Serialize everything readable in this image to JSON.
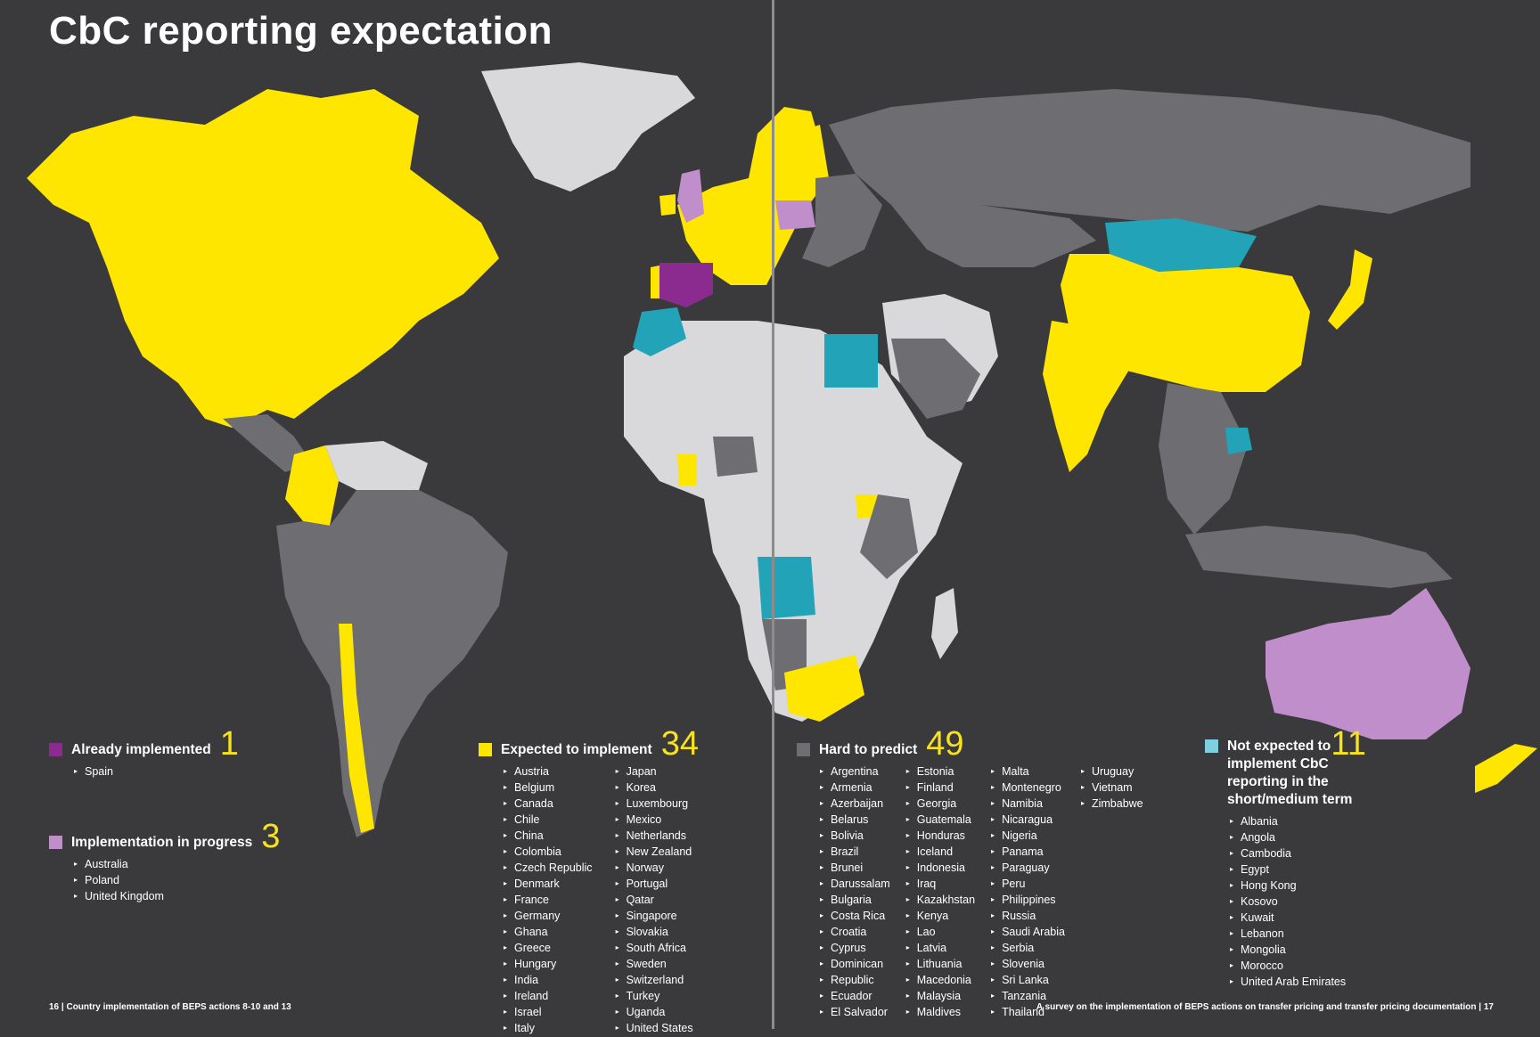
{
  "title": "CbC reporting expectation",
  "colors": {
    "background": "#3a3a3c",
    "already_implemented": "#8b2a8f",
    "implementation_in_progress": "#c08fcb",
    "expected_to_implement": "#ffe600",
    "hard_to_predict": "#6e6e72",
    "not_expected": "#22a3b8",
    "no_data": "#d9d9db"
  },
  "legend": {
    "already_implemented": {
      "label": "Already implemented",
      "count": "1",
      "countries": [
        "Spain"
      ]
    },
    "implementation_in_progress": {
      "label": "Implementation in progress",
      "count": "3",
      "countries": [
        "Australia",
        "Poland",
        "United Kingdom"
      ]
    },
    "expected_to_implement": {
      "label": "Expected to implement",
      "count": "34",
      "col1": [
        "Austria",
        "Belgium",
        "Canada",
        "Chile",
        "China",
        "Colombia",
        "Czech Republic",
        "Denmark",
        "France",
        "Germany",
        "Ghana",
        "Greece",
        "Hungary",
        "India",
        "Ireland",
        "Israel",
        "Italy"
      ],
      "col2": [
        "Japan",
        "Korea",
        "Luxembourg",
        "Mexico",
        "Netherlands",
        "New Zealand",
        "Norway",
        "Portugal",
        "Qatar",
        "Singapore",
        "Slovakia",
        "South Africa",
        "Sweden",
        "Switzerland",
        "Turkey",
        "Uganda",
        "United States"
      ]
    },
    "hard_to_predict": {
      "label": "Hard to predict",
      "count": "49",
      "col1": [
        "Argentina",
        "Armenia",
        "Azerbaijan",
        "Belarus",
        "Bolivia",
        "Brazil",
        "Brunei",
        "Darussalam",
        "Bulgaria",
        "Costa Rica",
        "Croatia",
        "Cyprus",
        "Dominican",
        "Republic",
        "Ecuador",
        "El Salvador"
      ],
      "col2": [
        "Estonia",
        "Finland",
        "Georgia",
        "Guatemala",
        "Honduras",
        "Iceland",
        "Indonesia",
        "Iraq",
        "Kazakhstan",
        "Kenya",
        "Lao",
        "Latvia",
        "Lithuania",
        "Macedonia",
        "Malaysia",
        "Maldives"
      ],
      "col3": [
        "Malta",
        "Montenegro",
        "Namibia",
        "Nicaragua",
        "Nigeria",
        "Panama",
        "Paraguay",
        "Peru",
        "Philippines",
        "Russia",
        "Saudi Arabia",
        "Serbia",
        "Slovenia",
        "Sri Lanka",
        "Tanzania",
        "Thailand"
      ],
      "col4": [
        "Uruguay",
        "Vietnam",
        "Zimbabwe"
      ]
    },
    "not_expected": {
      "label_line1": "Not expected to",
      "label_line2": "implement CbC",
      "label_line3": "reporting in the",
      "label_line4": "short/medium term",
      "count": "11",
      "countries": [
        "Albania",
        "Angola",
        "Cambodia",
        "Egypt",
        "Hong Kong",
        "Kosovo",
        "Kuwait",
        "Lebanon",
        "Mongolia",
        "Morocco",
        "United Arab Emirates"
      ]
    }
  },
  "footer": {
    "left": "16  |  Country implementation of BEPS actions 8-10 and 13",
    "right": "A survey on the implementation of BEPS actions on transfer pricing and transfer pricing documentation  |  17"
  }
}
